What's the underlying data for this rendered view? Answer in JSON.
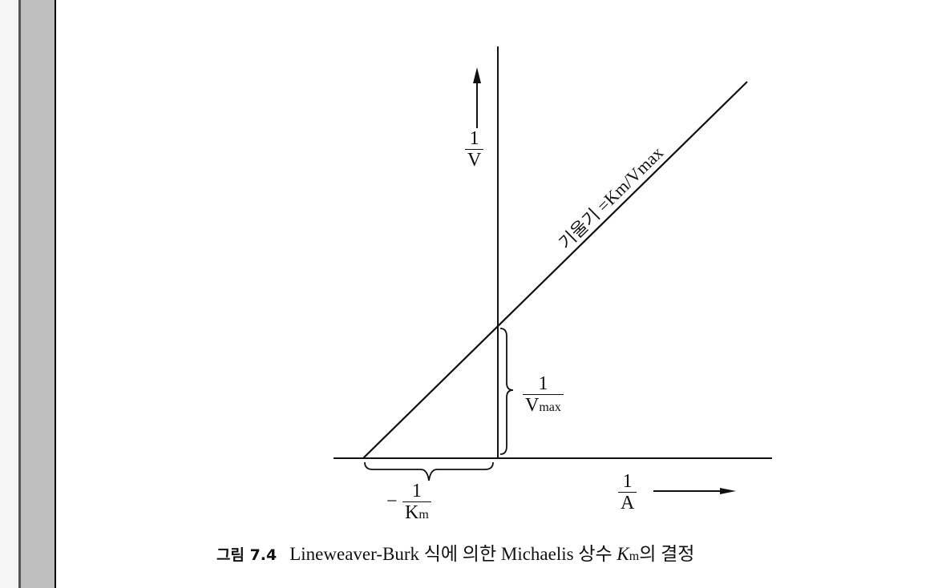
{
  "figure": {
    "y_axis_label": {
      "numerator": "1",
      "denominator": "V"
    },
    "x_axis_label": {
      "numerator": "1",
      "denominator": "A"
    },
    "slope_label": "기울기 =Km/Vmax",
    "intercept_y_label": {
      "numerator": "1",
      "denominator": "V",
      "subscript": "max"
    },
    "intercept_x_label": {
      "sign": "−",
      "numerator": "1",
      "denominator": "K",
      "subscript": "m"
    },
    "caption": {
      "figure_number": "그림 7.4",
      "text_prefix": "Lineweaver-Burk 식에 의한 Michaelis 상수 ",
      "symbol": "K",
      "symbol_subscript": "m",
      "text_suffix": "의 결정"
    }
  },
  "colors": {
    "ink": "#111111",
    "side_panel": "#bfbfbf"
  }
}
